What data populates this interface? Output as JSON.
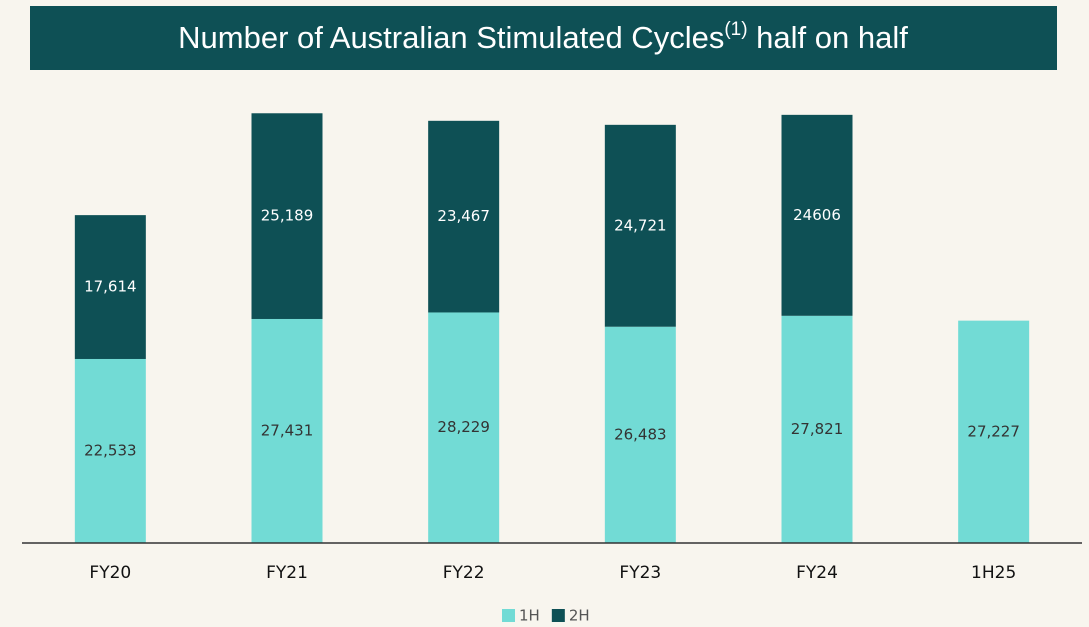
{
  "chart_data": {
    "type": "stacked_bar",
    "title": [
      "Number of Australian Stimulated Cycles",
      "(1)",
      " half on half"
    ],
    "categories": [
      "FY20",
      "FY21",
      "FY22",
      "FY23",
      "FY24",
      "1H25"
    ],
    "series": [
      {
        "name": "1H",
        "color": "#72dbd5",
        "values": [
          22533,
          27431,
          28229,
          26483,
          27821,
          27227
        ],
        "value_labels": [
          "22,533",
          "27,431",
          "28,229",
          "26,483",
          "27,821",
          "27,227"
        ]
      },
      {
        "name": "2H",
        "color": "#0e5055",
        "values": [
          17614,
          25189,
          23467,
          24721,
          24606,
          null
        ],
        "value_labels": [
          "17,614",
          "25,189",
          "23,467",
          "24,721",
          "24606",
          null
        ]
      }
    ],
    "ylim": [
      0,
      60000
    ]
  }
}
